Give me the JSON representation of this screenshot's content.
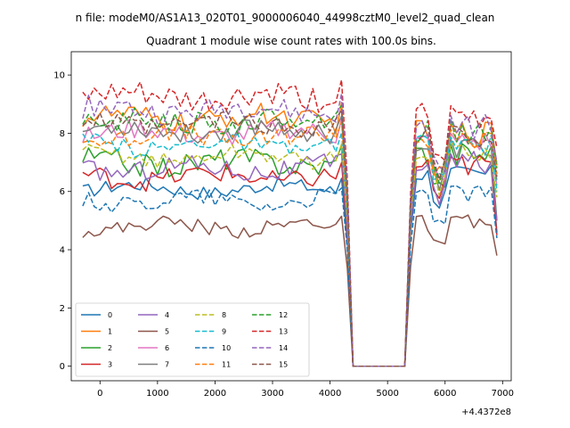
{
  "chart_data": {
    "type": "line",
    "suptitle": "n file: modeM0/AS1A13_020T01_9000006040_44998cztM0_level2_quad_clean",
    "title": "Quadrant 1 module wise count rates with 100.0s bins.",
    "xlabel": "",
    "ylabel": "",
    "x_offset_label": "+4.4372e8",
    "xlim": [
      -500,
      7150
    ],
    "ylim": [
      -0.5,
      10.8
    ],
    "x_ticks": [
      0,
      1000,
      2000,
      3000,
      4000,
      5000,
      6000,
      7000
    ],
    "x_tick_labels": [
      "0",
      "1000",
      "2000",
      "3000",
      "4000",
      "5000",
      "6000",
      "7000"
    ],
    "y_ticks": [
      0,
      2,
      4,
      6,
      8,
      10
    ],
    "y_tick_labels": [
      "0",
      "2",
      "4",
      "6",
      "8",
      "10"
    ],
    "grid": false,
    "legend_position": "lower-left",
    "legend_columns": 4,
    "segments": {
      "seg1": {
        "start": -300,
        "end": 4200,
        "step": 100
      },
      "drop_x": [
        4300,
        4400
      ],
      "zero_x": [
        4400,
        5300
      ],
      "seg2": {
        "start": 5400,
        "end": 6900,
        "step": 100
      }
    },
    "series": [
      {
        "name": "0",
        "color": "#1f77b4",
        "dash": "solid",
        "mean1": 6.1,
        "amp1": 0.25,
        "mean2": 6.6,
        "end": 4.6,
        "dip": 1.0
      },
      {
        "name": "1",
        "color": "#ff7f0e",
        "dash": "solid",
        "mean1": 8.5,
        "amp1": 0.4,
        "mean2": 8.0,
        "end": 6.9,
        "dip": 1.6
      },
      {
        "name": "2",
        "color": "#2ca02c",
        "dash": "solid",
        "mean1": 7.0,
        "amp1": 0.4,
        "mean2": 7.3,
        "end": 5.0,
        "dip": 1.2
      },
      {
        "name": "3",
        "color": "#d62728",
        "dash": "solid",
        "mean1": 6.5,
        "amp1": 0.35,
        "mean2": 6.9,
        "end": 4.5,
        "dip": 1.1
      },
      {
        "name": "4",
        "color": "#9467bd",
        "dash": "solid",
        "mean1": 6.8,
        "amp1": 0.35,
        "mean2": 7.0,
        "end": 5.0,
        "dip": 1.2
      },
      {
        "name": "5",
        "color": "#8c564b",
        "dash": "solid",
        "mean1": 4.8,
        "amp1": 0.25,
        "mean2": 4.9,
        "end": 3.8,
        "dip": 0.9
      },
      {
        "name": "6",
        "color": "#e377c2",
        "dash": "solid",
        "mean1": 8.0,
        "amp1": 0.35,
        "mean2": 7.7,
        "end": 6.2,
        "dip": 1.4
      },
      {
        "name": "7",
        "color": "#7f7f7f",
        "dash": "solid",
        "mean1": 8.1,
        "amp1": 0.35,
        "mean2": 7.5,
        "end": 6.4,
        "dip": 1.4
      },
      {
        "name": "8",
        "color": "#bcbd22",
        "dash": "dashed",
        "mean1": 7.2,
        "amp1": 0.3,
        "mean2": 7.4,
        "end": 5.8,
        "dip": 1.3
      },
      {
        "name": "9",
        "color": "#17becf",
        "dash": "dashed",
        "mean1": 7.6,
        "amp1": 0.3,
        "mean2": 7.6,
        "end": 6.0,
        "dip": 1.3
      },
      {
        "name": "10",
        "color": "#1f77b4",
        "dash": "dashed",
        "mean1": 5.7,
        "amp1": 0.3,
        "mean2": 5.9,
        "end": 4.4,
        "dip": 1.0
      },
      {
        "name": "11",
        "color": "#ff7f0e",
        "dash": "dashed",
        "mean1": 7.9,
        "amp1": 0.35,
        "mean2": 7.8,
        "end": 6.6,
        "dip": 1.4
      },
      {
        "name": "12",
        "color": "#2ca02c",
        "dash": "dashed",
        "mean1": 8.4,
        "amp1": 0.4,
        "mean2": 8.1,
        "end": 6.8,
        "dip": 1.5
      },
      {
        "name": "13",
        "color": "#d62728",
        "dash": "dashed",
        "mean1": 9.2,
        "amp1": 0.45,
        "mean2": 8.5,
        "end": 7.5,
        "dip": 1.7
      },
      {
        "name": "14",
        "color": "#9467bd",
        "dash": "dashed",
        "mean1": 8.8,
        "amp1": 0.4,
        "mean2": 8.2,
        "end": 7.0,
        "dip": 1.5
      },
      {
        "name": "15",
        "color": "#8c564b",
        "dash": "dashed",
        "mean1": 8.3,
        "amp1": 0.35,
        "mean2": 7.9,
        "end": 6.5,
        "dip": 1.4
      }
    ]
  }
}
